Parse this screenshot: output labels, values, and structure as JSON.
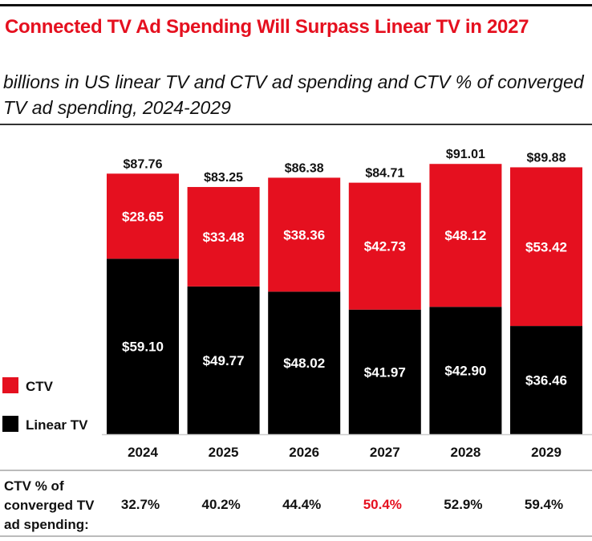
{
  "chart_data": {
    "type": "bar",
    "stacked": true,
    "title": "Connected TV Ad Spending Will Surpass Linear TV in 2027",
    "subtitle": "billions in US linear TV and CTV ad spending and CTV % of converged TV ad spending, 2024-2029",
    "categories": [
      "2024",
      "2025",
      "2026",
      "2027",
      "2028",
      "2029"
    ],
    "series": [
      {
        "name": "Linear TV",
        "color": "#000000",
        "values": [
          59.1,
          49.77,
          48.02,
          41.97,
          42.9,
          36.46
        ],
        "labels": [
          "$59.10",
          "$49.77",
          "$48.02",
          "$41.97",
          "$42.90",
          "$36.46"
        ]
      },
      {
        "name": "CTV",
        "color": "#e5101f",
        "values": [
          28.65,
          33.48,
          38.36,
          42.73,
          48.12,
          53.42
        ],
        "labels": [
          "$28.65",
          "$33.48",
          "$38.36",
          "$42.73",
          "$48.12",
          "$53.42"
        ]
      }
    ],
    "totals": [
      "$87.76",
      "$83.25",
      "$86.38",
      "$84.71",
      "$91.01",
      "$89.88"
    ],
    "legend": {
      "placement": "left",
      "order": [
        "CTV",
        "Linear TV"
      ]
    },
    "grid": false,
    "ylim": [
      0,
      100
    ],
    "share_row": {
      "label_lines": [
        "CTV % of",
        "converged TV",
        "ad spending:"
      ],
      "values": [
        "32.7%",
        "40.2%",
        "44.4%",
        "50.4%",
        "52.9%",
        "59.4%"
      ],
      "highlight_index": 3,
      "highlight_color": "#e5101f"
    }
  }
}
